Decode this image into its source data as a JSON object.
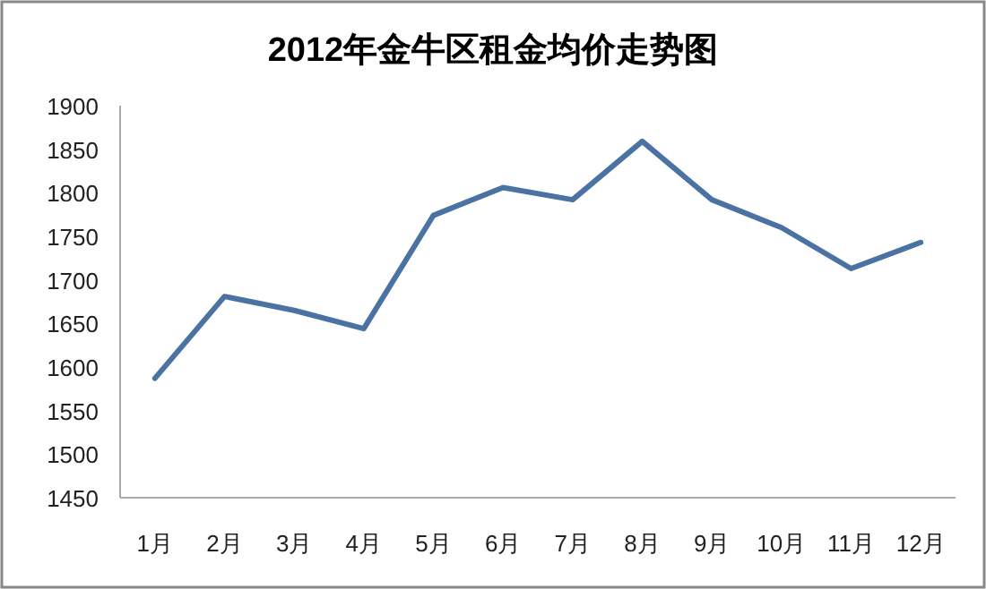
{
  "chart_data": {
    "type": "line",
    "title": "2012年金牛区租金均价走势图",
    "categories": [
      "1月",
      "2月",
      "3月",
      "4月",
      "5月",
      "6月",
      "7月",
      "8月",
      "9月",
      "10月",
      "11月",
      "12月"
    ],
    "series": [
      {
        "color": "#4a72a2",
        "values": [
          1587,
          1681,
          1665,
          1644,
          1774,
          1806,
          1792,
          1859,
          1792,
          1760,
          1713,
          1743
        ]
      }
    ],
    "ylim": [
      1450,
      1900
    ],
    "yticks": [
      1450,
      1500,
      1550,
      1600,
      1650,
      1700,
      1750,
      1800,
      1850,
      1900
    ],
    "grid": false,
    "marker": "none",
    "line_style": "solid"
  }
}
